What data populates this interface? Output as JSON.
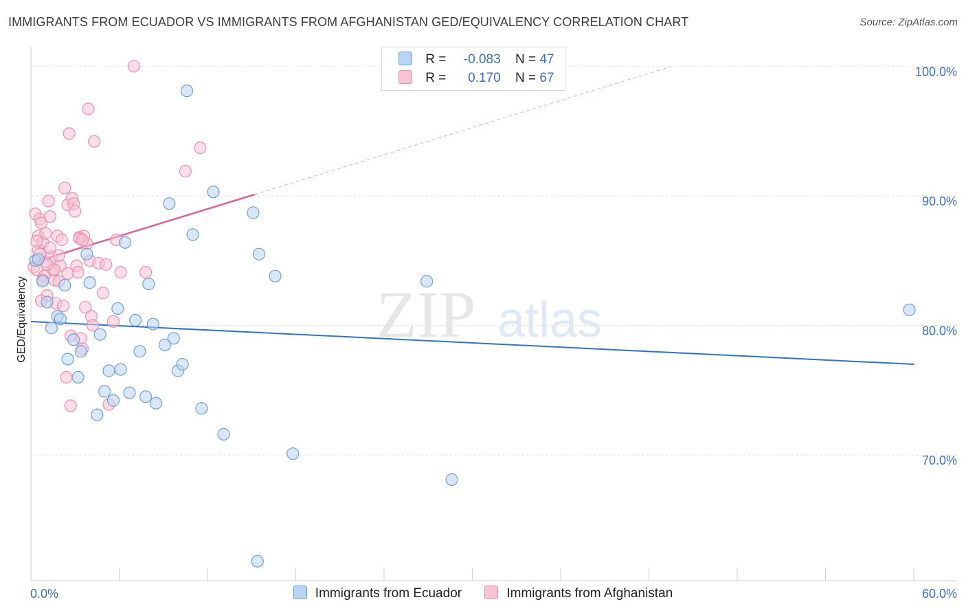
{
  "header": {
    "title": "IMMIGRANTS FROM ECUADOR VS IMMIGRANTS FROM AFGHANISTAN GED/EQUIVALENCY CORRELATION CHART",
    "source": "Source: ZipAtlas.com"
  },
  "legend": {
    "r_label": "R =",
    "n_label": "N =",
    "series": [
      {
        "r": "-0.083",
        "n": "47"
      },
      {
        "r": "0.170",
        "n": "67"
      }
    ]
  },
  "watermark": {
    "part1": "ZIP",
    "part2": "atlas"
  },
  "colors": {
    "ecuador_fill": "#b9d3f3",
    "ecuador_stroke": "#6d9fdb",
    "ecuador_line": "#2f72c9",
    "afghanistan_fill": "#f8c3d3",
    "afghanistan_stroke": "#ec8fad",
    "afghanistan_line": "#e0628f",
    "tick_text": "#3a6fc4"
  },
  "chart_data": {
    "type": "scatter",
    "title": "IMMIGRANTS FROM ECUADOR VS IMMIGRANTS FROM AFGHANISTAN GED/EQUIVALENCY CORRELATION CHART",
    "xlabel": "",
    "ylabel": "GED/Equivalency",
    "xlim": [
      0,
      60
    ],
    "ylim": [
      60.3,
      101.5
    ],
    "x_tick_labels": [
      "0.0%",
      "60.0%"
    ],
    "y_ticks": [
      70,
      80,
      90,
      100
    ],
    "y_tick_labels": [
      "70.0%",
      "80.0%",
      "90.0%",
      "100.0%"
    ],
    "grid": true,
    "legend_position": "bottom",
    "series": [
      {
        "name": "Immigrants from Ecuador",
        "trend": {
          "x": [
            0,
            60
          ],
          "y": [
            80.3,
            77.0
          ]
        },
        "points": [
          [
            0.3,
            85.0
          ],
          [
            0.5,
            85.1
          ],
          [
            0.8,
            83.4
          ],
          [
            1.1,
            81.8
          ],
          [
            1.4,
            79.8
          ],
          [
            1.8,
            80.7
          ],
          [
            2.0,
            80.5
          ],
          [
            2.3,
            83.1
          ],
          [
            2.5,
            77.4
          ],
          [
            2.9,
            78.9
          ],
          [
            3.2,
            76.0
          ],
          [
            3.4,
            78.0
          ],
          [
            3.8,
            85.5
          ],
          [
            4.0,
            83.3
          ],
          [
            4.5,
            73.1
          ],
          [
            4.7,
            79.3
          ],
          [
            5.0,
            74.9
          ],
          [
            5.3,
            76.5
          ],
          [
            5.6,
            74.2
          ],
          [
            5.9,
            81.3
          ],
          [
            6.1,
            76.6
          ],
          [
            6.4,
            86.4
          ],
          [
            6.7,
            74.8
          ],
          [
            7.1,
            80.4
          ],
          [
            7.4,
            78.0
          ],
          [
            7.8,
            74.5
          ],
          [
            8.0,
            83.2
          ],
          [
            8.3,
            80.1
          ],
          [
            8.5,
            74.0
          ],
          [
            9.1,
            78.5
          ],
          [
            9.4,
            89.4
          ],
          [
            9.7,
            79.0
          ],
          [
            10.0,
            76.5
          ],
          [
            10.3,
            77.0
          ],
          [
            10.6,
            98.1
          ],
          [
            11.0,
            87.0
          ],
          [
            11.6,
            73.6
          ],
          [
            12.4,
            90.3
          ],
          [
            13.1,
            71.6
          ],
          [
            15.1,
            88.7
          ],
          [
            15.4,
            61.8
          ],
          [
            15.5,
            85.5
          ],
          [
            16.6,
            83.8
          ],
          [
            17.8,
            70.1
          ],
          [
            26.9,
            83.4
          ],
          [
            28.6,
            68.1
          ],
          [
            59.7,
            81.2
          ]
        ]
      },
      {
        "name": "Immigrants from Afghanistan",
        "trend": {
          "x": [
            0,
            15.2
          ],
          "y": [
            84.8,
            90.1
          ]
        },
        "points": [
          [
            0.2,
            84.5
          ],
          [
            0.3,
            88.6
          ],
          [
            0.4,
            84.3
          ],
          [
            0.5,
            86.9
          ],
          [
            0.5,
            85.8
          ],
          [
            0.6,
            88.2
          ],
          [
            0.7,
            87.9
          ],
          [
            0.8,
            86.4
          ],
          [
            0.9,
            83.8
          ],
          [
            1.0,
            84.9
          ],
          [
            1.0,
            87.1
          ],
          [
            1.1,
            82.3
          ],
          [
            1.2,
            89.6
          ],
          [
            1.3,
            88.4
          ],
          [
            1.4,
            85.3
          ],
          [
            1.5,
            84.3
          ],
          [
            1.6,
            83.5
          ],
          [
            1.7,
            81.7
          ],
          [
            1.8,
            86.9
          ],
          [
            1.9,
            83.4
          ],
          [
            2.0,
            84.6
          ],
          [
            2.1,
            86.6
          ],
          [
            2.2,
            81.5
          ],
          [
            2.3,
            90.6
          ],
          [
            2.4,
            76.0
          ],
          [
            2.5,
            89.3
          ],
          [
            2.6,
            94.8
          ],
          [
            2.7,
            73.8
          ],
          [
            2.8,
            89.8
          ],
          [
            2.9,
            89.4
          ],
          [
            3.0,
            88.8
          ],
          [
            3.1,
            84.6
          ],
          [
            3.2,
            84.1
          ],
          [
            3.3,
            86.8
          ],
          [
            3.4,
            79.0
          ],
          [
            3.5,
            78.2
          ],
          [
            3.6,
            86.9
          ],
          [
            3.7,
            81.4
          ],
          [
            3.8,
            86.3
          ],
          [
            3.9,
            96.7
          ],
          [
            4.0,
            85.0
          ],
          [
            4.1,
            80.7
          ],
          [
            4.2,
            80.0
          ],
          [
            4.3,
            94.2
          ],
          [
            4.6,
            84.8
          ],
          [
            4.9,
            82.5
          ],
          [
            5.1,
            84.7
          ],
          [
            5.3,
            73.9
          ],
          [
            5.6,
            80.3
          ],
          [
            5.8,
            86.6
          ],
          [
            6.1,
            84.1
          ],
          [
            7.0,
            100.0
          ],
          [
            7.8,
            84.1
          ],
          [
            10.5,
            91.9
          ],
          [
            11.5,
            93.7
          ],
          [
            0.6,
            85.5
          ],
          [
            1.6,
            84.3
          ],
          [
            2.7,
            79.2
          ],
          [
            3.3,
            86.7
          ],
          [
            0.8,
            83.5
          ],
          [
            1.3,
            86.0
          ],
          [
            1.9,
            85.4
          ],
          [
            0.4,
            86.5
          ],
          [
            2.5,
            84.0
          ],
          [
            1.1,
            84.7
          ],
          [
            3.5,
            86.6
          ],
          [
            0.7,
            81.9
          ]
        ]
      }
    ]
  },
  "bottom_legend": {
    "items": [
      "Immigrants from Ecuador",
      "Immigrants from Afghanistan"
    ]
  }
}
